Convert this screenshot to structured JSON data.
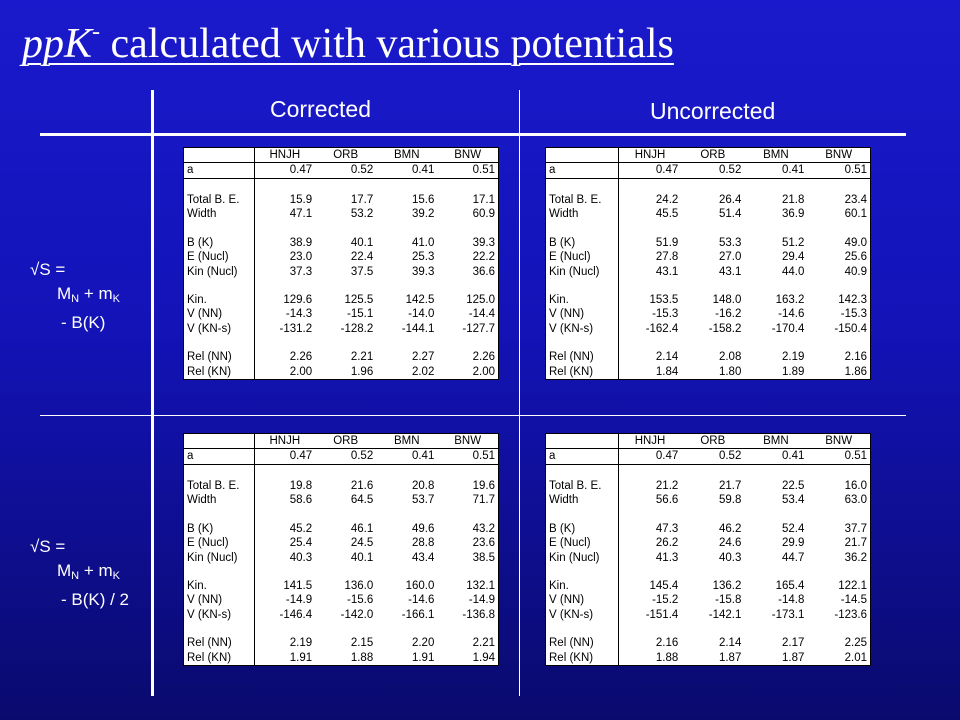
{
  "title": {
    "part1": "ppK",
    "sup": "-",
    "part2": " calculated with various potentials"
  },
  "columns": {
    "corrected": "Corrected",
    "uncorrected": "Uncorrected"
  },
  "eq1": {
    "line1": "√S =",
    "line2a": "M",
    "sub1": "N",
    "line2b": " + m",
    "sub2": "K",
    "line3": "- B(K)"
  },
  "eq2": {
    "line1": "√S =",
    "line2a": "M",
    "sub1": "N",
    "line2b": " + m",
    "sub2": "K",
    "line3": "- B(K) / 2"
  },
  "headers": [
    "HNJH",
    "ORB",
    "BMN",
    "BNW"
  ],
  "tables": {
    "top_corrected": {
      "labels": [
        "a",
        "",
        "Total B. E.",
        "Width",
        "",
        "B (K)",
        "E (Nucl)",
        "Kin (Nucl)",
        "",
        "Kin.",
        "V (NN)",
        "V (KN-s)",
        "",
        "Rel (NN)",
        "Rel (KN)"
      ],
      "rows": [
        [
          "0.47",
          "0.52",
          "0.41",
          "0.51"
        ],
        [
          "",
          "",
          "",
          ""
        ],
        [
          "15.9",
          "17.7",
          "15.6",
          "17.1"
        ],
        [
          "47.1",
          "53.2",
          "39.2",
          "60.9"
        ],
        [
          "",
          "",
          "",
          ""
        ],
        [
          "38.9",
          "40.1",
          "41.0",
          "39.3"
        ],
        [
          "23.0",
          "22.4",
          "25.3",
          "22.2"
        ],
        [
          "37.3",
          "37.5",
          "39.3",
          "36.6"
        ],
        [
          "",
          "",
          "",
          ""
        ],
        [
          "129.6",
          "125.5",
          "142.5",
          "125.0"
        ],
        [
          "-14.3",
          "-15.1",
          "-14.0",
          "-14.4"
        ],
        [
          "-131.2",
          "-128.2",
          "-144.1",
          "-127.7"
        ],
        [
          "",
          "",
          "",
          ""
        ],
        [
          "2.26",
          "2.21",
          "2.27",
          "2.26"
        ],
        [
          "2.00",
          "1.96",
          "2.02",
          "2.00"
        ]
      ]
    },
    "top_uncorrected": {
      "labels": [
        "a",
        "",
        "Total B. E.",
        "Width",
        "",
        "B (K)",
        "E (Nucl)",
        "Kin (Nucl)",
        "",
        "Kin.",
        "V (NN)",
        "V (KN-s)",
        "",
        "Rel (NN)",
        "Rel (KN)"
      ],
      "rows": [
        [
          "0.47",
          "0.52",
          "0.41",
          "0.51"
        ],
        [
          "",
          "",
          "",
          ""
        ],
        [
          "24.2",
          "26.4",
          "21.8",
          "23.4"
        ],
        [
          "45.5",
          "51.4",
          "36.9",
          "60.1"
        ],
        [
          "",
          "",
          "",
          ""
        ],
        [
          "51.9",
          "53.3",
          "51.2",
          "49.0"
        ],
        [
          "27.8",
          "27.0",
          "29.4",
          "25.6"
        ],
        [
          "43.1",
          "43.1",
          "44.0",
          "40.9"
        ],
        [
          "",
          "",
          "",
          ""
        ],
        [
          "153.5",
          "148.0",
          "163.2",
          "142.3"
        ],
        [
          "-15.3",
          "-16.2",
          "-14.6",
          "-15.3"
        ],
        [
          "-162.4",
          "-158.2",
          "-170.4",
          "-150.4"
        ],
        [
          "",
          "",
          "",
          ""
        ],
        [
          "2.14",
          "2.08",
          "2.19",
          "2.16"
        ],
        [
          "1.84",
          "1.80",
          "1.89",
          "1.86"
        ]
      ]
    },
    "bottom_corrected": {
      "labels": [
        "a",
        "",
        "Total B. E.",
        "Width",
        "",
        "B (K)",
        "E (Nucl)",
        "Kin (Nucl)",
        "",
        "Kin.",
        "V (NN)",
        "V (KN-s)",
        "",
        "Rel (NN)",
        "Rel (KN)"
      ],
      "rows": [
        [
          "0.47",
          "0.52",
          "0.41",
          "0.51"
        ],
        [
          "",
          "",
          "",
          ""
        ],
        [
          "19.8",
          "21.6",
          "20.8",
          "19.6"
        ],
        [
          "58.6",
          "64.5",
          "53.7",
          "71.7"
        ],
        [
          "",
          "",
          "",
          ""
        ],
        [
          "45.2",
          "46.1",
          "49.6",
          "43.2"
        ],
        [
          "25.4",
          "24.5",
          "28.8",
          "23.6"
        ],
        [
          "40.3",
          "40.1",
          "43.4",
          "38.5"
        ],
        [
          "",
          "",
          "",
          ""
        ],
        [
          "141.5",
          "136.0",
          "160.0",
          "132.1"
        ],
        [
          "-14.9",
          "-15.6",
          "-14.6",
          "-14.9"
        ],
        [
          "-146.4",
          "-142.0",
          "-166.1",
          "-136.8"
        ],
        [
          "",
          "",
          "",
          ""
        ],
        [
          "2.19",
          "2.15",
          "2.20",
          "2.21"
        ],
        [
          "1.91",
          "1.88",
          "1.91",
          "1.94"
        ]
      ]
    },
    "bottom_uncorrected": {
      "labels": [
        "a",
        "",
        "Total B. E.",
        "Width",
        "",
        "B (K)",
        "E (Nucl)",
        "Kin (Nucl)",
        "",
        "Kin.",
        "V (NN)",
        "V (KN-s)",
        "",
        "Rel (NN)",
        "Rel (KN)"
      ],
      "rows": [
        [
          "0.47",
          "0.52",
          "0.41",
          "0.51"
        ],
        [
          "",
          "",
          "",
          ""
        ],
        [
          "21.2",
          "21.7",
          "22.5",
          "16.0"
        ],
        [
          "56.6",
          "59.8",
          "53.4",
          "63.0"
        ],
        [
          "",
          "",
          "",
          ""
        ],
        [
          "47.3",
          "46.2",
          "52.4",
          "37.7"
        ],
        [
          "26.2",
          "24.6",
          "29.9",
          "21.7"
        ],
        [
          "41.3",
          "40.3",
          "44.7",
          "36.2"
        ],
        [
          "",
          "",
          "",
          ""
        ],
        [
          "145.4",
          "136.2",
          "165.4",
          "122.1"
        ],
        [
          "-15.2",
          "-15.8",
          "-14.8",
          "-14.5"
        ],
        [
          "-151.4",
          "-142.1",
          "-173.1",
          "-123.6"
        ],
        [
          "",
          "",
          "",
          ""
        ],
        [
          "2.16",
          "2.14",
          "2.17",
          "2.25"
        ],
        [
          "1.88",
          "1.87",
          "1.87",
          "2.01"
        ]
      ]
    }
  }
}
